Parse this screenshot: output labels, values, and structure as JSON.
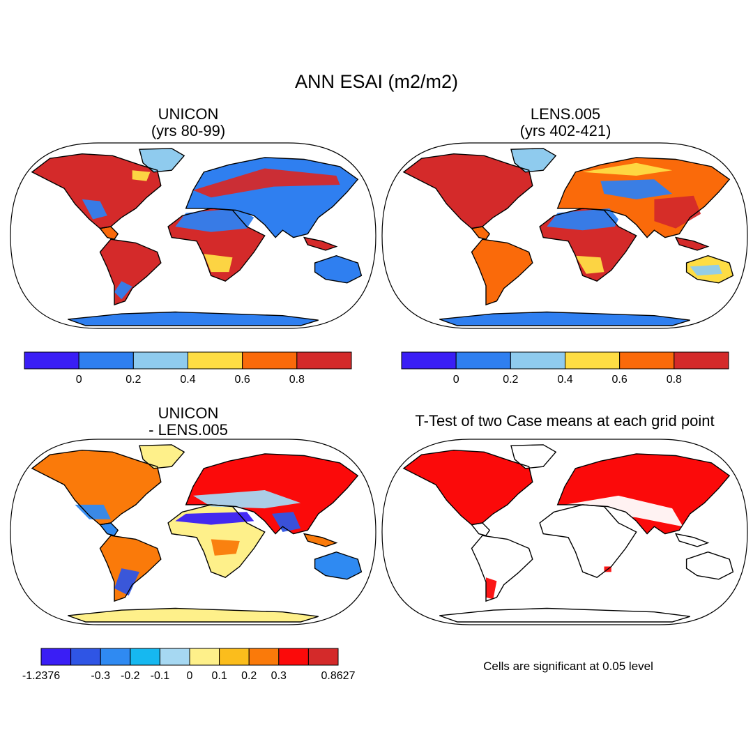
{
  "figure_title": "ANN ESAI (m2/m2)",
  "panels": [
    {
      "id": "unicon",
      "title_line1": "UNICON",
      "title_line2": "(yrs 80-99)"
    },
    {
      "id": "lens",
      "title_line1": "LENS.005",
      "title_line2": "(yrs 402-421)"
    },
    {
      "id": "diff",
      "title_line1": "UNICON",
      "title_line2": "- LENS.005"
    },
    {
      "id": "ttest",
      "title_line1": "T-Test of two Case means at each grid point",
      "title_line2": ""
    }
  ],
  "ttest_note": "Cells are significant at 0.05 level",
  "colorbars": {
    "abs": {
      "colors": [
        "#3a1ef5",
        "#2f7ff0",
        "#8fcbee",
        "#fedd44",
        "#fa6a0a",
        "#d42a2a"
      ],
      "labels": [
        "0",
        "0.2",
        "0.4",
        "0.6",
        "0.8"
      ]
    },
    "diff": {
      "colors": [
        "#3a1ef5",
        "#2f55e5",
        "#2f8af2",
        "#16b8f0",
        "#a6d8f2",
        "#fef08a",
        "#fbbd1c",
        "#fa7a0a",
        "#fb0a0a",
        "#d42a2a"
      ],
      "labels": [
        "-1.2376",
        "-0.3",
        "-0.2",
        "-0.1",
        "0",
        "0.1",
        "0.2",
        "0.3",
        "0.8627"
      ]
    }
  },
  "chart_data": {
    "type": "heatmap",
    "title": "ANN ESAI (m2/m2)",
    "variable": "ESAI",
    "units": "m2/m2",
    "season": "ANN",
    "panels": [
      {
        "name": "UNICON",
        "years": "80-99",
        "levels": [
          0,
          0.2,
          0.4,
          0.6,
          0.8
        ]
      },
      {
        "name": "LENS.005",
        "years": "402-421",
        "levels": [
          0,
          0.2,
          0.4,
          0.6,
          0.8
        ]
      },
      {
        "name": "UNICON - LENS.005",
        "levels": [
          -1.2376,
          -0.3,
          -0.2,
          -0.1,
          0,
          0.1,
          0.2,
          0.3,
          0.8627
        ]
      },
      {
        "name": "T-Test of two Case means at each grid point",
        "significance": 0.05
      }
    ],
    "grid": false,
    "legend": "bottom"
  }
}
